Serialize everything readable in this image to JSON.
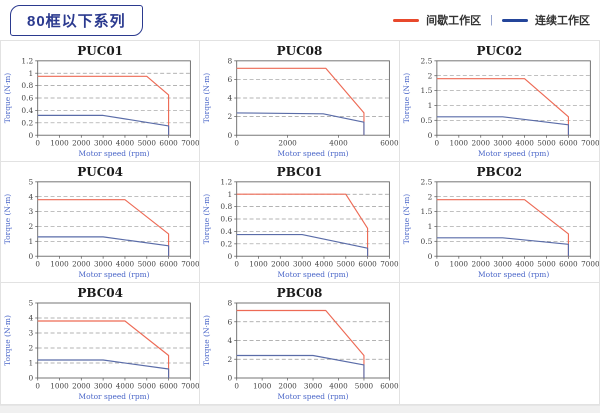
{
  "page": {
    "title_badge": "80框以下系列",
    "legend": {
      "separator": "|",
      "items": [
        {
          "label": "间歇工作区",
          "color": "#e8492c"
        },
        {
          "label": "连续工作区",
          "color": "#24459a"
        }
      ]
    }
  },
  "colors": {
    "badge_navy": "#2b3a8f",
    "chart_red": "#ed6a55",
    "chart_blue": "#5a6ca8",
    "gridline": "#9a9a9a",
    "axis": "#666666",
    "tick_text": "#444444",
    "axis_label_blue": "#4a66c8"
  },
  "chart_data": [
    {
      "type": "line",
      "title": "PUC01",
      "xlabel": "Motor speed (rpm)",
      "ylabel": "Torque (N·m)",
      "xlim": [
        0,
        7000
      ],
      "ylim": [
        0,
        1.2
      ],
      "xticks": [
        0,
        1000,
        2000,
        3000,
        4000,
        5000,
        6000,
        7000
      ],
      "yticks": [
        0,
        0.2,
        0.4,
        0.6,
        0.8,
        1,
        1.2
      ],
      "series": [
        {
          "name": "间歇工作区",
          "color": "#ed6a55",
          "points": [
            [
              0,
              0.95
            ],
            [
              5000,
              0.95
            ],
            [
              6000,
              0.65
            ],
            [
              6000,
              0
            ]
          ]
        },
        {
          "name": "连续工作区",
          "color": "#5a6ca8",
          "points": [
            [
              0,
              0.32
            ],
            [
              3000,
              0.32
            ],
            [
              6000,
              0.15
            ],
            [
              6000,
              0
            ]
          ]
        }
      ]
    },
    {
      "type": "line",
      "title": "PUC08",
      "xlabel": "Motor speed (rpm)",
      "ylabel": "Torque (N·m)",
      "xlim": [
        0,
        6000
      ],
      "ylim": [
        0,
        8
      ],
      "xticks": [
        0,
        2000,
        4000,
        6000
      ],
      "yticks": [
        0,
        2,
        4,
        6,
        8
      ],
      "series": [
        {
          "name": "间歇工作区",
          "color": "#ed6a55",
          "points": [
            [
              0,
              7.2
            ],
            [
              3500,
              7.2
            ],
            [
              5000,
              2.4
            ],
            [
              5000,
              0
            ]
          ]
        },
        {
          "name": "连续工作区",
          "color": "#5a6ca8",
          "points": [
            [
              0,
              2.4
            ],
            [
              3400,
              2.3
            ],
            [
              5000,
              1.4
            ],
            [
              5000,
              0
            ]
          ]
        }
      ]
    },
    {
      "type": "line",
      "title": "PUC02",
      "xlabel": "Motor speed (rpm)",
      "ylabel": "Torque (N·m)",
      "xlim": [
        0,
        7000
      ],
      "ylim": [
        0,
        2.5
      ],
      "xticks": [
        0,
        1000,
        2000,
        3000,
        4000,
        5000,
        6000,
        7000
      ],
      "yticks": [
        0,
        0.5,
        1,
        1.5,
        2,
        2.5
      ],
      "series": [
        {
          "name": "间歇工作区",
          "color": "#ed6a55",
          "points": [
            [
              0,
              1.9
            ],
            [
              4000,
              1.9
            ],
            [
              6000,
              0.62
            ],
            [
              6000,
              0
            ]
          ]
        },
        {
          "name": "连续工作区",
          "color": "#5a6ca8",
          "points": [
            [
              0,
              0.62
            ],
            [
              3000,
              0.62
            ],
            [
              6000,
              0.35
            ],
            [
              6000,
              0
            ]
          ]
        }
      ]
    },
    {
      "type": "line",
      "title": "PUC04",
      "xlabel": "Motor speed (rpm)",
      "ylabel": "Torque (N·m)",
      "xlim": [
        0,
        7000
      ],
      "ylim": [
        0,
        5
      ],
      "xticks": [
        0,
        1000,
        2000,
        3000,
        4000,
        5000,
        6000,
        7000
      ],
      "yticks": [
        0,
        1,
        2,
        3,
        4,
        5
      ],
      "series": [
        {
          "name": "间歇工作区",
          "color": "#ed6a55",
          "points": [
            [
              0,
              3.8
            ],
            [
              4000,
              3.8
            ],
            [
              6000,
              1.5
            ],
            [
              6000,
              0
            ]
          ]
        },
        {
          "name": "连续工作区",
          "color": "#5a6ca8",
          "points": [
            [
              0,
              1.3
            ],
            [
              3000,
              1.3
            ],
            [
              6000,
              0.7
            ],
            [
              6000,
              0
            ]
          ]
        }
      ]
    },
    {
      "type": "line",
      "title": "PBC01",
      "xlabel": "Motor speed (rpm)",
      "ylabel": "Torque (N·m)",
      "xlim": [
        0,
        7000
      ],
      "ylim": [
        0,
        1.2
      ],
      "xticks": [
        0,
        1000,
        2000,
        3000,
        4000,
        5000,
        6000,
        7000
      ],
      "yticks": [
        0,
        0.2,
        0.4,
        0.6,
        0.8,
        1,
        1.2
      ],
      "series": [
        {
          "name": "间歇工作区",
          "color": "#ed6a55",
          "points": [
            [
              0,
              1.0
            ],
            [
              5000,
              1.0
            ],
            [
              6000,
              0.45
            ],
            [
              6000,
              0
            ]
          ]
        },
        {
          "name": "连续工作区",
          "color": "#5a6ca8",
          "points": [
            [
              0,
              0.35
            ],
            [
              3000,
              0.35
            ],
            [
              6000,
              0.13
            ],
            [
              6000,
              0
            ]
          ]
        }
      ]
    },
    {
      "type": "line",
      "title": "PBC02",
      "xlabel": "Motor speed (rpm)",
      "ylabel": "Torque (N·m)",
      "xlim": [
        0,
        7000
      ],
      "ylim": [
        0,
        2.5
      ],
      "xticks": [
        0,
        1000,
        2000,
        3000,
        4000,
        5000,
        6000,
        7000
      ],
      "yticks": [
        0,
        0.5,
        1,
        1.5,
        2,
        2.5
      ],
      "series": [
        {
          "name": "间歇工作区",
          "color": "#ed6a55",
          "points": [
            [
              0,
              1.9
            ],
            [
              4000,
              1.9
            ],
            [
              6000,
              0.75
            ],
            [
              6000,
              0
            ]
          ]
        },
        {
          "name": "连续工作区",
          "color": "#5a6ca8",
          "points": [
            [
              0,
              0.62
            ],
            [
              3000,
              0.62
            ],
            [
              6000,
              0.4
            ],
            [
              6000,
              0
            ]
          ]
        }
      ]
    },
    {
      "type": "line",
      "title": "PBC04",
      "xlabel": "Motor speed (rpm)",
      "ylabel": "Torque (N·m)",
      "xlim": [
        0,
        7000
      ],
      "ylim": [
        0,
        5
      ],
      "xticks": [
        0,
        1000,
        2000,
        3000,
        4000,
        5000,
        6000,
        7000
      ],
      "yticks": [
        0,
        1,
        2,
        3,
        4,
        5
      ],
      "series": [
        {
          "name": "间歇工作区",
          "color": "#ed6a55",
          "points": [
            [
              0,
              3.8
            ],
            [
              4000,
              3.8
            ],
            [
              6000,
              1.5
            ],
            [
              6000,
              0
            ]
          ]
        },
        {
          "name": "连续工作区",
          "color": "#5a6ca8",
          "points": [
            [
              0,
              1.2
            ],
            [
              3000,
              1.2
            ],
            [
              6000,
              0.6
            ],
            [
              6000,
              0
            ]
          ]
        }
      ]
    },
    {
      "type": "line",
      "title": "PBC08",
      "xlabel": "Motor speed (rpm)",
      "ylabel": "Torque (N·m)",
      "xlim": [
        0,
        6000
      ],
      "ylim": [
        0,
        8
      ],
      "xticks": [
        0,
        1000,
        2000,
        3000,
        4000,
        5000,
        6000
      ],
      "yticks": [
        0,
        2,
        4,
        6,
        8
      ],
      "series": [
        {
          "name": "间歇工作区",
          "color": "#ed6a55",
          "points": [
            [
              0,
              7.2
            ],
            [
              3500,
              7.2
            ],
            [
              5000,
              2.4
            ],
            [
              5000,
              0
            ]
          ]
        },
        {
          "name": "连续工作区",
          "color": "#5a6ca8",
          "points": [
            [
              0,
              2.4
            ],
            [
              3000,
              2.4
            ],
            [
              5000,
              1.4
            ],
            [
              5000,
              0
            ]
          ]
        }
      ]
    }
  ]
}
